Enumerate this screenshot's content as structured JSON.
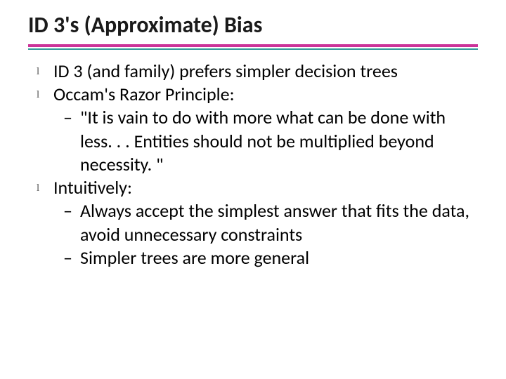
{
  "title": "ID 3's (Approximate) Bias",
  "divider": {
    "pink": "#cc3399",
    "teal": "#339999"
  },
  "bullets": {
    "b1": "ID 3 (and family) prefers simpler decision trees",
    "b2": "Occam's Razor Principle:",
    "b2_sub1": "\"It is vain to do with more what can be done with less. . . Entities should not be multiplied beyond necessity. \"",
    "b3": "Intuitively:",
    "b3_sub1": "Always accept the simplest answer that fits the data, avoid unnecessary constraints",
    "b3_sub2": "Simpler trees are more general"
  }
}
